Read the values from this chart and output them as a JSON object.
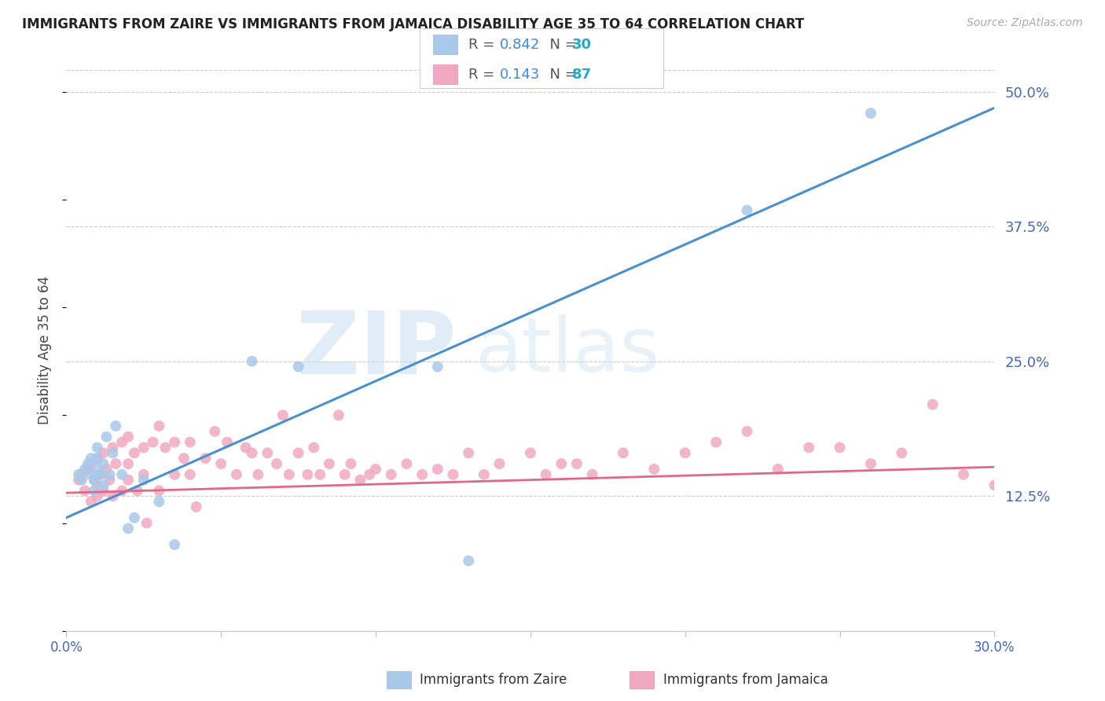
{
  "title": "IMMIGRANTS FROM ZAIRE VS IMMIGRANTS FROM JAMAICA DISABILITY AGE 35 TO 64 CORRELATION CHART",
  "source": "Source: ZipAtlas.com",
  "ylabel": "Disability Age 35 to 64",
  "xlim": [
    0.0,
    0.3
  ],
  "ylim": [
    0.0,
    0.52
  ],
  "xticks": [
    0.0,
    0.05,
    0.1,
    0.15,
    0.2,
    0.25,
    0.3
  ],
  "xtick_labels": [
    "0.0%",
    "",
    "",
    "",
    "",
    "",
    "30.0%"
  ],
  "yticks_right": [
    0.125,
    0.25,
    0.375,
    0.5
  ],
  "ytick_labels_right": [
    "12.5%",
    "25.0%",
    "37.5%",
    "50.0%"
  ],
  "legend_label1": "Immigrants from Zaire",
  "legend_label2": "Immigrants from Jamaica",
  "zaire_color": "#a8c8ea",
  "jamaica_color": "#f0a8c0",
  "zaire_line_color": "#4a90d0",
  "jamaica_line_color": "#e06888",
  "watermark_zip": "ZIP",
  "watermark_atlas": "atlas",
  "zaire_x": [
    0.004,
    0.005,
    0.006,
    0.007,
    0.008,
    0.008,
    0.009,
    0.009,
    0.01,
    0.01,
    0.01,
    0.011,
    0.012,
    0.012,
    0.013,
    0.014,
    0.015,
    0.016,
    0.018,
    0.02,
    0.022,
    0.025,
    0.03,
    0.035,
    0.06,
    0.075,
    0.12,
    0.13,
    0.22,
    0.26
  ],
  "zaire_y": [
    0.145,
    0.14,
    0.15,
    0.155,
    0.145,
    0.16,
    0.14,
    0.13,
    0.16,
    0.15,
    0.17,
    0.145,
    0.155,
    0.135,
    0.18,
    0.145,
    0.165,
    0.19,
    0.145,
    0.095,
    0.105,
    0.14,
    0.12,
    0.08,
    0.25,
    0.245,
    0.245,
    0.065,
    0.39,
    0.48
  ],
  "jamaica_x": [
    0.004,
    0.005,
    0.006,
    0.007,
    0.008,
    0.008,
    0.009,
    0.01,
    0.01,
    0.01,
    0.011,
    0.012,
    0.012,
    0.013,
    0.014,
    0.015,
    0.015,
    0.016,
    0.018,
    0.018,
    0.02,
    0.02,
    0.02,
    0.022,
    0.023,
    0.025,
    0.025,
    0.026,
    0.028,
    0.03,
    0.03,
    0.032,
    0.035,
    0.035,
    0.038,
    0.04,
    0.04,
    0.042,
    0.045,
    0.048,
    0.05,
    0.052,
    0.055,
    0.058,
    0.06,
    0.062,
    0.065,
    0.068,
    0.07,
    0.072,
    0.075,
    0.078,
    0.08,
    0.082,
    0.085,
    0.088,
    0.09,
    0.092,
    0.095,
    0.098,
    0.1,
    0.105,
    0.11,
    0.115,
    0.12,
    0.125,
    0.13,
    0.135,
    0.14,
    0.15,
    0.155,
    0.16,
    0.165,
    0.17,
    0.18,
    0.19,
    0.2,
    0.21,
    0.22,
    0.23,
    0.24,
    0.25,
    0.26,
    0.27,
    0.28,
    0.29,
    0.3
  ],
  "jamaica_y": [
    0.14,
    0.145,
    0.13,
    0.15,
    0.155,
    0.12,
    0.14,
    0.135,
    0.16,
    0.125,
    0.145,
    0.165,
    0.13,
    0.15,
    0.14,
    0.17,
    0.125,
    0.155,
    0.175,
    0.13,
    0.155,
    0.14,
    0.18,
    0.165,
    0.13,
    0.17,
    0.145,
    0.1,
    0.175,
    0.19,
    0.13,
    0.17,
    0.175,
    0.145,
    0.16,
    0.175,
    0.145,
    0.115,
    0.16,
    0.185,
    0.155,
    0.175,
    0.145,
    0.17,
    0.165,
    0.145,
    0.165,
    0.155,
    0.2,
    0.145,
    0.165,
    0.145,
    0.17,
    0.145,
    0.155,
    0.2,
    0.145,
    0.155,
    0.14,
    0.145,
    0.15,
    0.145,
    0.155,
    0.145,
    0.15,
    0.145,
    0.165,
    0.145,
    0.155,
    0.165,
    0.145,
    0.155,
    0.155,
    0.145,
    0.165,
    0.15,
    0.165,
    0.175,
    0.185,
    0.15,
    0.17,
    0.17,
    0.155,
    0.165,
    0.21,
    0.145,
    0.135
  ]
}
